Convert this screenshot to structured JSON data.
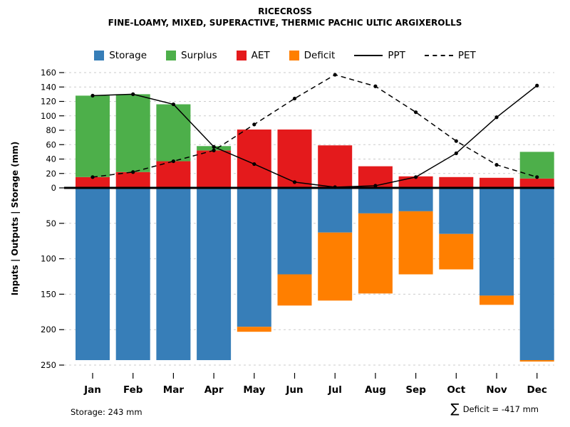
{
  "chart_data": {
    "type": "bar",
    "title": "RICECROSS",
    "subtitle": "FINE-LOAMY, MIXED, SUPERACTIVE, THERMIC PACHIC ULTIC ARGIXEROLLS",
    "ylabel": "Inputs | Outputs | Storage  (mm)",
    "categories": [
      "Jan",
      "Feb",
      "Mar",
      "Apr",
      "May",
      "Jun",
      "Jul",
      "Aug",
      "Sep",
      "Oct",
      "Nov",
      "Dec"
    ],
    "series": [
      {
        "name": "Storage",
        "type": "bar-down",
        "color": "#377EB8",
        "values": [
          243,
          243,
          243,
          243,
          196,
          122,
          63,
          36,
          33,
          65,
          152,
          243
        ]
      },
      {
        "name": "Surplus",
        "type": "bar-up",
        "color": "#4DAF4A",
        "values": [
          113,
          108,
          79,
          6,
          0,
          0,
          0,
          0,
          0,
          0,
          0,
          37
        ]
      },
      {
        "name": "AET",
        "type": "bar-up",
        "color": "#E41A1C",
        "values": [
          15,
          22,
          37,
          52,
          81,
          81,
          59,
          30,
          16,
          15,
          14,
          13
        ]
      },
      {
        "name": "Deficit",
        "type": "bar-down",
        "color": "#FF7F00",
        "values": [
          0,
          0,
          0,
          0,
          7,
          44,
          96,
          113,
          89,
          50,
          13,
          2
        ]
      },
      {
        "name": "PPT",
        "type": "line",
        "line_style": "solid",
        "color": "#000000",
        "values": [
          128,
          130,
          116,
          57,
          33,
          8,
          1,
          3,
          15,
          48,
          98,
          142
        ]
      },
      {
        "name": "PET",
        "type": "line",
        "line_style": "dashed",
        "color": "#000000",
        "values": [
          15,
          22,
          37,
          52,
          88,
          124,
          157,
          141,
          105,
          65,
          32,
          15
        ]
      }
    ],
    "y_top_ticks": [
      0,
      20,
      40,
      60,
      80,
      100,
      120,
      140,
      160
    ],
    "y_bottom_ticks": [
      0,
      50,
      100,
      150,
      200,
      250
    ],
    "ylim_top": [
      0,
      160
    ],
    "ylim_bottom": [
      0,
      250
    ],
    "grid": "dashed-horizontal",
    "legend_position": "top",
    "annotations": {
      "storage_note": "Storage: 243 mm",
      "deficit_sigma": "∑",
      "deficit_note": "Deficit = -417 mm"
    }
  }
}
